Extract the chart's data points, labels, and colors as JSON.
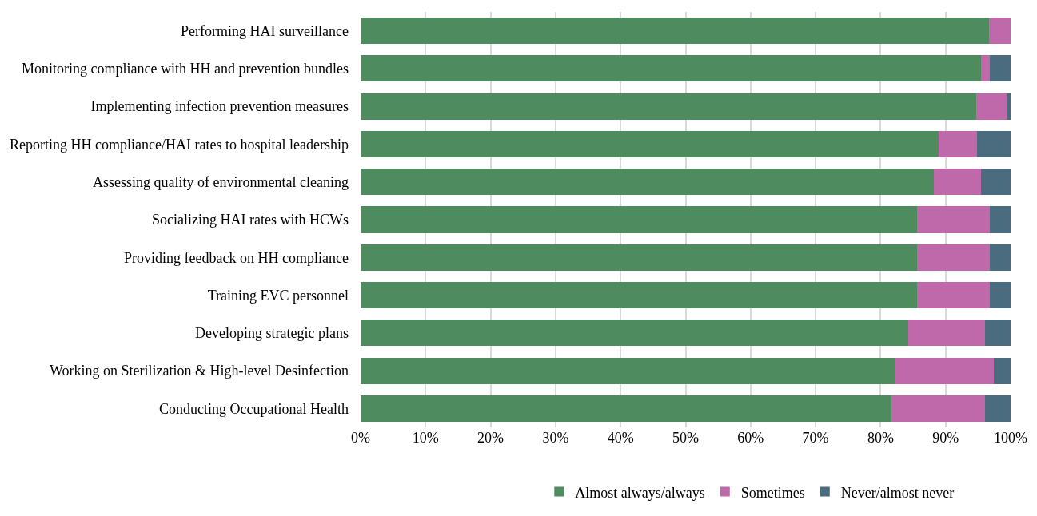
{
  "chart_data": {
    "type": "bar",
    "orientation": "horizontal",
    "stacked": true,
    "categories": [
      "Performing HAI surveillance",
      "Monitoring compliance with HH and prevention bundles",
      "Implementing infection prevention measures",
      "Reporting HH compliance/HAI rates to hospital leadership",
      "Assessing quality of environmental cleaning",
      "Socializing HAI rates with HCWs",
      "Providing feedback on HH compliance",
      "Training EVC personnel",
      "Developing strategic plans",
      "Working on Sterilization & High-level Desinfection",
      "Conducting Occupational Health"
    ],
    "series": [
      {
        "name": "Almost always/always",
        "color": "#4e8b5f",
        "values": [
          96.7,
          95.4,
          94.7,
          88.9,
          88.2,
          85.6,
          85.6,
          85.6,
          84.3,
          82.3,
          81.7
        ]
      },
      {
        "name": "Sometimes",
        "color": "#bf69aa",
        "values": [
          3.3,
          1.4,
          4.7,
          5.9,
          7.3,
          11.2,
          11.2,
          11.2,
          11.8,
          15.1,
          14.4
        ]
      },
      {
        "name": "Never/almost never",
        "color": "#4b6b7f",
        "values": [
          0,
          3.2,
          0.6,
          5.2,
          4.5,
          3.2,
          3.2,
          3.2,
          3.9,
          2.6,
          3.9
        ]
      }
    ],
    "xlim": [
      0,
      100
    ],
    "xticks": [
      {
        "value": 0,
        "label": "0%"
      },
      {
        "value": 10,
        "label": "10%"
      },
      {
        "value": 20,
        "label": "20%"
      },
      {
        "value": 30,
        "label": "30%"
      },
      {
        "value": 40,
        "label": "40%"
      },
      {
        "value": 50,
        "label": "50%"
      },
      {
        "value": 60,
        "label": "60%"
      },
      {
        "value": 70,
        "label": "70%"
      },
      {
        "value": 80,
        "label": "80%"
      },
      {
        "value": 90,
        "label": "90%"
      },
      {
        "value": 100,
        "label": "100%"
      }
    ],
    "grid": "x",
    "legend": "bottom"
  }
}
